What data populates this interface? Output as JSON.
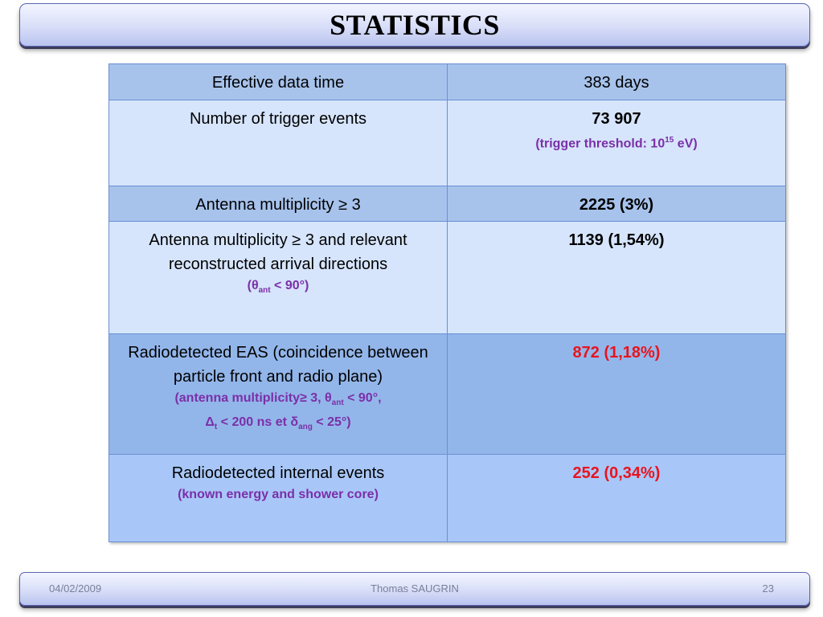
{
  "slide": {
    "title": "STATISTICS"
  },
  "table": {
    "rows": [
      {
        "label": "Effective data time",
        "value": "383 days"
      },
      {
        "label": "Number of trigger events",
        "value": "73 907",
        "note": {
          "pre": "(trigger threshold: 10",
          "sup": "15",
          "post": " eV)"
        }
      },
      {
        "label": "Antenna multiplicity ≥ 3",
        "value": "2225 (3%)"
      },
      {
        "label": "Antenna multiplicity ≥ 3 and relevant reconstructed arrival directions",
        "value": "1139 (1,54%)",
        "note": {
          "pre": "(θ",
          "sub": "ant",
          "post": " < 90°)"
        }
      },
      {
        "label": "Radiodetected EAS (coincidence between particle front and radio plane)",
        "value": "872 (1,18%)",
        "note": {
          "line1_pre": "(antenna multiplicity≥ 3, θ",
          "line1_sub": "ant",
          "line1_post": " < 90°,",
          "line2_a": "Δ",
          "line2_sub1": "t",
          "line2_b": " < 200 ns et δ",
          "line2_sub2": "ang",
          "line2_c": " < 25°)"
        }
      },
      {
        "label": "Radiodetected internal events",
        "value": "252 (0,34%)",
        "note": {
          "text": "(known energy and shower core)"
        }
      }
    ]
  },
  "footer": {
    "date": "04/02/2009",
    "author": "Thomas SAUGRIN",
    "page": "23"
  },
  "colors": {
    "note_purple": "#7b2fa8",
    "value_red": "#e8141e"
  }
}
